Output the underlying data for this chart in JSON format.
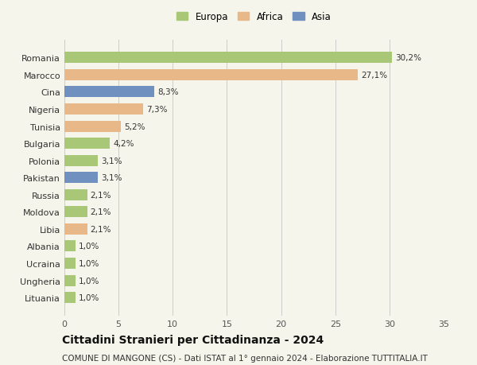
{
  "categories": [
    "Romania",
    "Marocco",
    "Cina",
    "Nigeria",
    "Tunisia",
    "Bulgaria",
    "Polonia",
    "Pakistan",
    "Russia",
    "Moldova",
    "Libia",
    "Albania",
    "Ucraina",
    "Ungheria",
    "Lituania"
  ],
  "values": [
    30.2,
    27.1,
    8.3,
    7.3,
    5.2,
    4.2,
    3.1,
    3.1,
    2.1,
    2.1,
    2.1,
    1.0,
    1.0,
    1.0,
    1.0
  ],
  "labels": [
    "30,2%",
    "27,1%",
    "8,3%",
    "7,3%",
    "5,2%",
    "4,2%",
    "3,1%",
    "3,1%",
    "2,1%",
    "2,1%",
    "2,1%",
    "1,0%",
    "1,0%",
    "1,0%",
    "1,0%"
  ],
  "colors": [
    "#a8c878",
    "#e8b888",
    "#7090c0",
    "#e8b888",
    "#e8b888",
    "#a8c878",
    "#a8c878",
    "#7090c0",
    "#a8c878",
    "#a8c878",
    "#e8b888",
    "#a8c878",
    "#a8c878",
    "#a8c878",
    "#a8c878"
  ],
  "legend_labels": [
    "Europa",
    "Africa",
    "Asia"
  ],
  "legend_colors": [
    "#a8c878",
    "#e8b888",
    "#7090c0"
  ],
  "title": "Cittadini Stranieri per Cittadinanza - 2024",
  "subtitle": "COMUNE DI MANGONE (CS) - Dati ISTAT al 1° gennaio 2024 - Elaborazione TUTTITALIA.IT",
  "xlim": [
    0,
    35
  ],
  "xticks": [
    0,
    5,
    10,
    15,
    20,
    25,
    30,
    35
  ],
  "background_color": "#f5f5eb",
  "grid_color": "#cccccc",
  "title_fontsize": 10,
  "subtitle_fontsize": 7.5,
  "label_fontsize": 7.5,
  "ytick_fontsize": 8,
  "xtick_fontsize": 8
}
